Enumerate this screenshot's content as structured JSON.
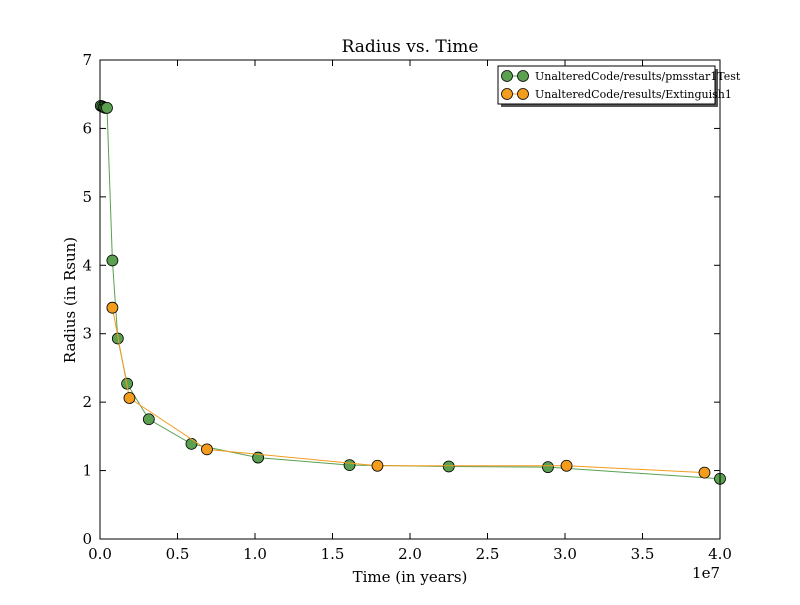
{
  "chart_data": {
    "type": "line",
    "title": "Radius vs. Time",
    "xlabel": "Time (in years)",
    "ylabel": "Radius (in Rsun)",
    "x_offset_label": "1e7",
    "xlim": [
      0,
      40000000
    ],
    "ylim": [
      0,
      7
    ],
    "x_ticks": [
      0,
      5000000,
      10000000,
      15000000,
      20000000,
      25000000,
      30000000,
      35000000,
      40000000
    ],
    "x_tick_labels": [
      "0.0",
      "0.5",
      "1.0",
      "1.5",
      "2.0",
      "2.5",
      "3.0",
      "3.5",
      "4.0"
    ],
    "y_ticks": [
      0,
      1,
      2,
      3,
      4,
      5,
      6,
      7
    ],
    "y_tick_labels": [
      "0",
      "1",
      "2",
      "3",
      "4",
      "5",
      "6",
      "7"
    ],
    "grid": false,
    "legend_position": "top-right",
    "series": [
      {
        "name": "UnalteredCode/results/pmsstar1Test",
        "color": "#5aa050",
        "x": [
          50000,
          150000,
          250000,
          350000,
          450000,
          800000,
          1150000,
          1750000,
          3150000,
          5900000,
          10200000,
          16100000,
          22500000,
          28900000,
          40000000
        ],
        "y": [
          6.33,
          6.32,
          6.31,
          6.3,
          6.3,
          4.07,
          2.93,
          2.27,
          1.75,
          1.39,
          1.19,
          1.08,
          1.06,
          1.05,
          0.88
        ]
      },
      {
        "name": "UnalteredCode/results/Extinguish1",
        "color": "#f39c1e",
        "x": [
          800000,
          1900000,
          6900000,
          17900000,
          30100000,
          39000000
        ],
        "y": [
          3.38,
          2.06,
          1.31,
          1.07,
          1.07,
          0.97
        ]
      }
    ]
  }
}
